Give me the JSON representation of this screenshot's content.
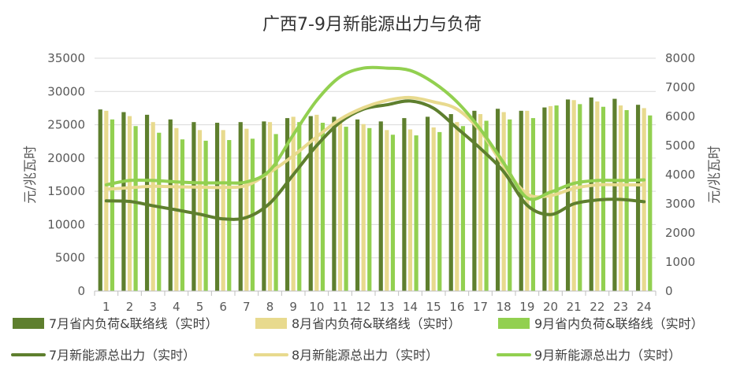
{
  "chart_data": {
    "type": "bar+line",
    "title": "广西7-9月新能源出力与负荷",
    "ylabel_left": "元/兆瓦时",
    "ylabel_right": "元/兆瓦时",
    "categories": [
      "1",
      "2",
      "3",
      "4",
      "5",
      "6",
      "7",
      "8",
      "9",
      "10",
      "11",
      "12",
      "13",
      "14",
      "15",
      "16",
      "17",
      "18",
      "19",
      "20",
      "21",
      "22",
      "23",
      "24"
    ],
    "ylim_left": [
      0,
      35000
    ],
    "ylim_right": [
      0,
      8000
    ],
    "yticks_left": [
      "0",
      "5000",
      "10000",
      "15000",
      "20000",
      "25000",
      "30000",
      "35000"
    ],
    "yticks_right": [
      "0",
      "1000",
      "2000",
      "3000",
      "4000",
      "5000",
      "6000",
      "7000",
      "8000"
    ],
    "grid": true,
    "legend_position": "bottom",
    "bar_series": [
      {
        "name": "7月省内负荷&联络线（实时）",
        "color": "#5E7F2E",
        "values": [
          27300,
          26900,
          26500,
          25800,
          25400,
          25300,
          25400,
          25500,
          26000,
          26300,
          26200,
          25800,
          25500,
          26000,
          26200,
          26600,
          27100,
          27400,
          27100,
          27600,
          28800,
          29100,
          28900,
          28000
        ]
      },
      {
        "name": "8月省内负荷&联络线（实时）",
        "color": "#E8DA8E",
        "values": [
          27100,
          26300,
          25400,
          24500,
          24200,
          24200,
          24400,
          25400,
          26200,
          26500,
          25900,
          25100,
          24200,
          24300,
          24600,
          25400,
          26600,
          26900,
          27100,
          27800,
          28700,
          28500,
          27900,
          27500
        ]
      },
      {
        "name": "9月省内负荷&联络线（实时）",
        "color": "#92D050",
        "values": [
          25800,
          24800,
          23800,
          22800,
          22600,
          22700,
          22900,
          23600,
          25400,
          25300,
          24700,
          24500,
          23500,
          23400,
          23900,
          24800,
          25600,
          25800,
          26000,
          27900,
          28100,
          27700,
          27200,
          26400
        ]
      }
    ],
    "line_series": [
      {
        "name": "7月新能源总出力（实时）",
        "color": "#5E7F2E",
        "values": [
          3100,
          3080,
          2930,
          2790,
          2640,
          2480,
          2530,
          3020,
          4000,
          5000,
          5800,
          6250,
          6400,
          6530,
          6280,
          5600,
          4900,
          4100,
          2950,
          2630,
          3000,
          3130,
          3150,
          3070
        ]
      },
      {
        "name": "8月新能源总出力（实时）",
        "color": "#E8DA8E",
        "values": [
          3500,
          3550,
          3600,
          3580,
          3570,
          3560,
          3630,
          4080,
          4650,
          5300,
          5900,
          6300,
          6550,
          6650,
          6500,
          6250,
          5500,
          4300,
          3340,
          3280,
          3530,
          3650,
          3650,
          3650
        ]
      },
      {
        "name": "9月新能源总出力（实时）",
        "color": "#92D050",
        "values": [
          3650,
          3800,
          3800,
          3750,
          3720,
          3720,
          3750,
          4150,
          5370,
          6550,
          7360,
          7660,
          7660,
          7580,
          7160,
          6500,
          5560,
          4400,
          3200,
          3400,
          3700,
          3800,
          3800,
          3820
        ]
      }
    ]
  }
}
